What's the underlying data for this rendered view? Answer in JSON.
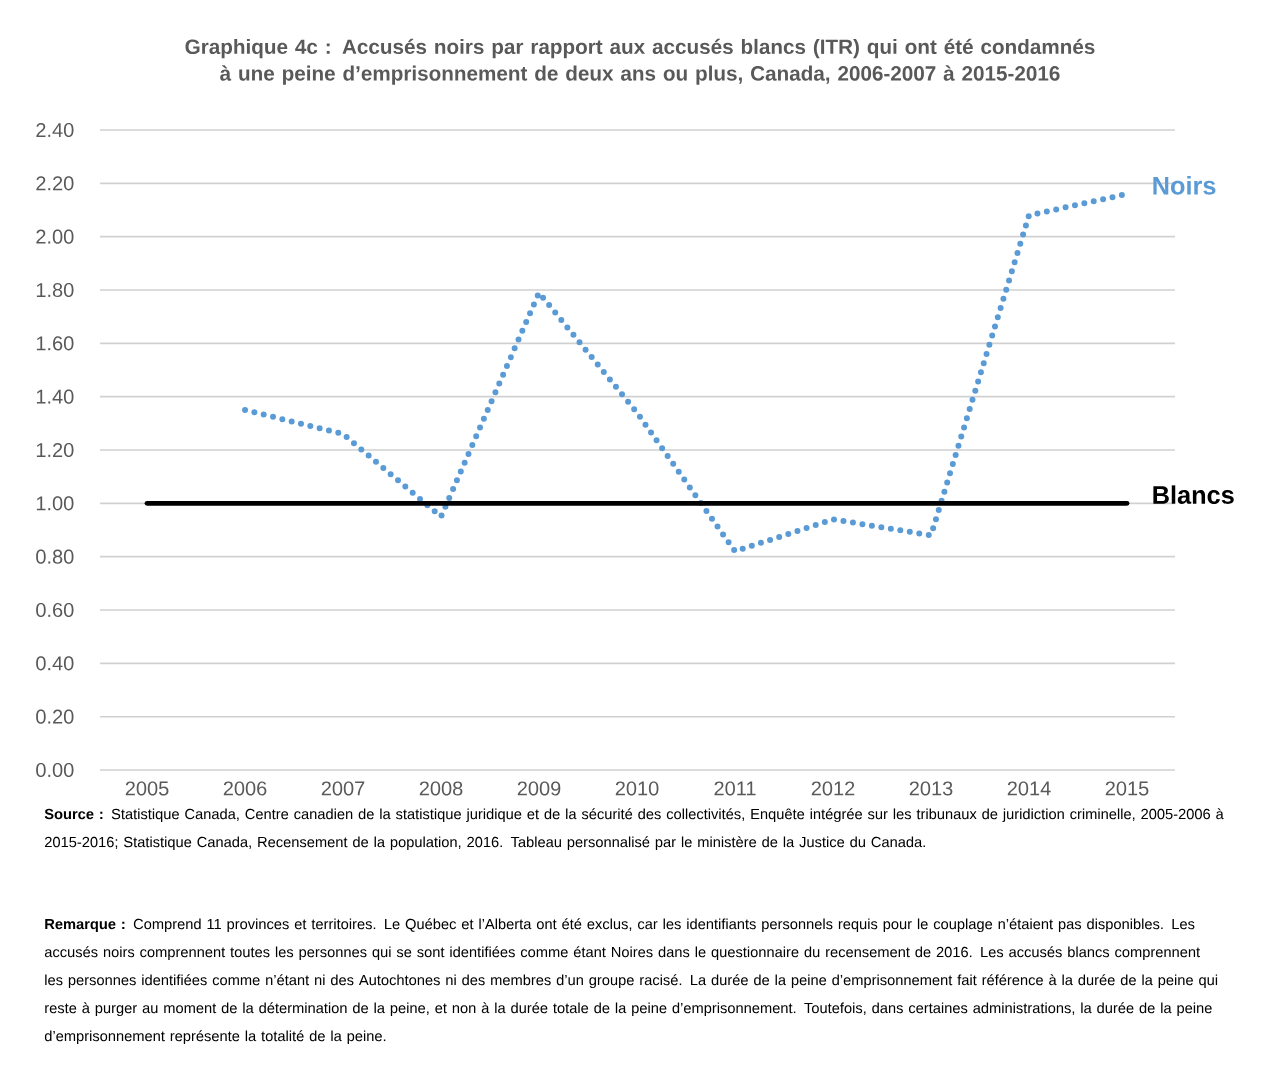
{
  "chart_data": {
    "type": "line",
    "title": "Graphique 4c : Accusés noirs par rapport aux accusés blancs (ITR) qui ont été condamnés à une peine d’emprisonnement de deux ans ou plus, Canada, 2006-2007 à 2015-2016",
    "categories": [
      "2005",
      "2006",
      "2007",
      "2008",
      "2009",
      "2010",
      "2011",
      "2012",
      "2013",
      "2014",
      "2015"
    ],
    "series": [
      {
        "name": "Noirs",
        "color": "#5b9bd5",
        "line_style": "dotted",
        "values": [
          null,
          1.35,
          1.26,
          0.95,
          1.79,
          1.34,
          0.82,
          0.94,
          0.88,
          2.08,
          2.16
        ]
      },
      {
        "name": "Blancs",
        "color": "#000000",
        "line_style": "solid",
        "values": [
          1,
          1,
          1,
          1,
          1,
          1,
          1,
          1,
          1,
          1,
          1
        ]
      }
    ],
    "ylim": [
      0,
      2.4
    ],
    "yticks": [
      {
        "value": 0,
        "label": "0.00"
      },
      {
        "value": 0.2,
        "label": "0.20"
      },
      {
        "value": 0.4,
        "label": "0.40"
      },
      {
        "value": 0.6,
        "label": "0.60"
      },
      {
        "value": 0.8,
        "label": "0.80"
      },
      {
        "value": 1,
        "label": "1.00"
      },
      {
        "value": 1.2,
        "label": "1.20"
      },
      {
        "value": 1.4,
        "label": "1.40"
      },
      {
        "value": 1.6,
        "label": "1.60"
      },
      {
        "value": 1.8,
        "label": "1.80"
      },
      {
        "value": 2,
        "label": "2.00"
      },
      {
        "value": 2.2,
        "label": "2.20"
      },
      {
        "value": 2.4,
        "label": "2.40"
      }
    ],
    "grid": "y",
    "marker": "none",
    "annotations": [
      "**Source :** Statistique Canada, Centre canadien de la statistique juridique et de la sécurité des collectivités, Enquête intégrée sur les tribunaux de juridiction criminelle, 2005-2006 à 2015-2016; Statistique Canada, Recensement de la population, 2016. Tableau personnalisé par le ministère de la Justice du Canada.",
      "**Remarque :** Comprend 11 provinces et territoires. Le Québec et l’Alberta ont été exclus, car les identifiants personnels requis pour le couplage n’étaient pas disponibles. Les accusés noirs comprennent toutes les personnes qui se sont identifiées comme étant Noires dans le questionnaire du recensement de 2016. Les accusés blancs comprennent les personnes identifiées comme n’étant ni des Autochtones ni des membres d’un groupe racisé. La durée de la peine d’emprisonnement fait référence à la durée de la peine qui reste à purger au moment de la détermination de la peine, et non à la durée totale de la peine d’emprisonnement. Toutefois, dans certaines administrations, la durée de la peine d’emprisonnement représente la totalité de la peine."
    ]
  }
}
